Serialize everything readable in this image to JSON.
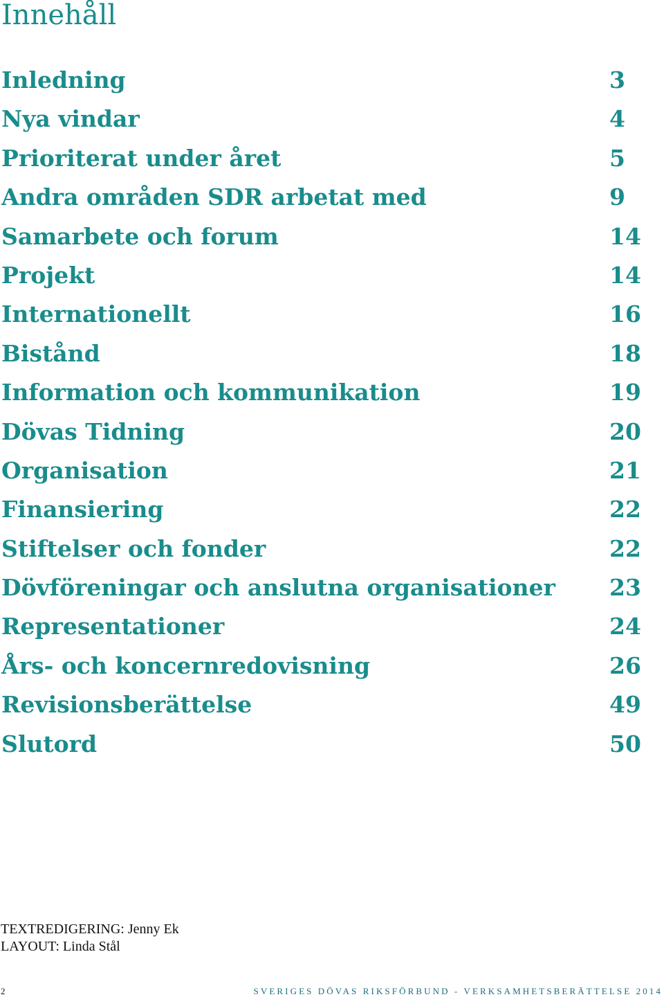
{
  "page": {
    "title": "Innehåll"
  },
  "toc": {
    "entries": [
      {
        "title": "Inledning",
        "page": "3"
      },
      {
        "title": "Nya vindar",
        "page": "4"
      },
      {
        "title": "Prioriterat under året",
        "page": "5"
      },
      {
        "title": "Andra områden SDR arbetat med",
        "page": "9"
      },
      {
        "title": "Samarbete och forum",
        "page": "14"
      },
      {
        "title": "Projekt",
        "page": "14"
      },
      {
        "title": "Internationellt",
        "page": "16"
      },
      {
        "title": "Bistånd",
        "page": "18"
      },
      {
        "title": "Information och kommunikation",
        "page": "19"
      },
      {
        "title": "Dövas Tidning",
        "page": "20"
      },
      {
        "title": "Organisation",
        "page": "21"
      },
      {
        "title": "Finansiering",
        "page": "22"
      },
      {
        "title": "Stiftelser och fonder",
        "page": "22"
      },
      {
        "title": "Dövföreningar och anslutna organisationer",
        "page": "23"
      },
      {
        "title": "Representationer",
        "page": "24"
      },
      {
        "title": "Års- och koncernredovisning",
        "page": "26"
      },
      {
        "title": "Revisionsberättelse",
        "page": "49"
      },
      {
        "title": "Slutord",
        "page": "50"
      }
    ]
  },
  "credits": {
    "text_editing": "TEXTREDIGERING: Jenny Ek",
    "layout": "LAYOUT: Linda Stål"
  },
  "footer": {
    "page_number": "2",
    "text": "SVERIGES DÖVAS RIKSFÖRBUND - VERKSAMHETSBERÄTTELSE 2014"
  },
  "colors": {
    "accent": "#1a8c8c",
    "footer_text": "#1a6f7a",
    "body_text": "#111111"
  }
}
